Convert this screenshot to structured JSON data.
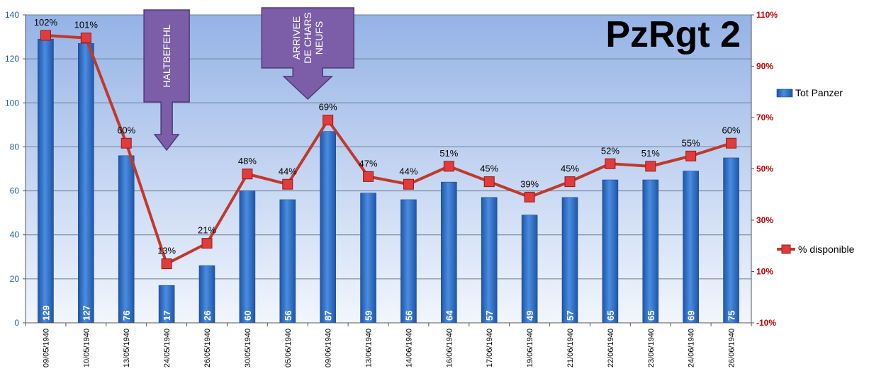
{
  "chart_data": {
    "type": "bar+line",
    "title": "PzRgt 2",
    "categories": [
      "09/05/1940",
      "10/05/1940",
      "13/05/1940",
      "24/05/1940",
      "26/05/1940",
      "30/05/1940",
      "05/06/1940",
      "09/06/1940",
      "13/06/1940",
      "14/06/1940",
      "16/06/1940",
      "17/06/1940",
      "19/06/1940",
      "21/06/1940",
      "22/06/1940",
      "23/06/1940",
      "24/06/1940",
      "26/06/1940"
    ],
    "series": [
      {
        "name": "Tot Panzer",
        "type": "bar",
        "axis": "left",
        "color": "#2F6FC9",
        "values": [
          129,
          127,
          76,
          17,
          26,
          60,
          56,
          87,
          59,
          56,
          64,
          57,
          49,
          57,
          65,
          65,
          69,
          75
        ]
      },
      {
        "name": "% disponible",
        "type": "line",
        "axis": "right",
        "color": "#C0392B",
        "values": [
          102,
          101,
          60,
          13,
          21,
          48,
          44,
          69,
          47,
          44,
          51,
          45,
          39,
          45,
          52,
          51,
          55,
          60
        ]
      }
    ],
    "pct_labels": [
      "102%",
      "101%",
      "60%",
      "13%",
      "21%",
      "48%",
      "44%",
      "69%",
      "47%",
      "44%",
      "51%",
      "45%",
      "39%",
      "45%",
      "52%",
      "51%",
      "55%",
      "60%"
    ],
    "y_left": {
      "min": 0,
      "max": 140,
      "ticks": [
        "0",
        "20",
        "40",
        "60",
        "80",
        "100",
        "120",
        "140"
      ],
      "color": "#1F5FA8"
    },
    "y_right": {
      "min": -10,
      "max": 110,
      "ticks": [
        "-10%",
        "10%",
        "30%",
        "50%",
        "70%",
        "90%",
        "110%"
      ],
      "color": "#C00000"
    },
    "annotations": [
      {
        "lines": [
          "HALTBEFEHL"
        ],
        "category_index": 3,
        "color": "#7B5EA7"
      },
      {
        "lines": [
          "ARRIVEE",
          "DE CHARS",
          "NEUFS"
        ],
        "category_index": 6.5,
        "color": "#7B5EA7"
      }
    ],
    "legend_position": "right",
    "grid": true
  }
}
